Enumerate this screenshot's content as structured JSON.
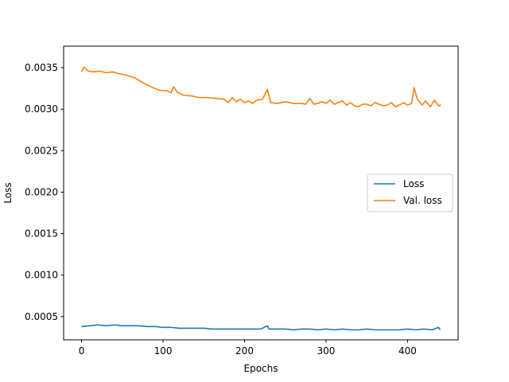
{
  "chart_data": {
    "type": "line",
    "title": "",
    "xlabel": "Epochs",
    "ylabel": "Loss",
    "xlim": [
      -22,
      462
    ],
    "ylim": [
      0.00022,
      0.00376
    ],
    "x_ticks": [
      0,
      100,
      200,
      300,
      400
    ],
    "x_tick_labels": [
      "0",
      "100",
      "200",
      "300",
      "400"
    ],
    "y_ticks": [
      0.0005,
      0.001,
      0.0015,
      0.002,
      0.0025,
      0.003,
      0.0035
    ],
    "y_tick_labels": [
      "0.0005",
      "0.0010",
      "0.0015",
      "0.0020",
      "0.0025",
      "0.0030",
      "0.0035"
    ],
    "grid": false,
    "legend_position": "center-right",
    "series": [
      {
        "name": "Loss",
        "color": "#1f77b4",
        "x": [
          0,
          10,
          20,
          30,
          40,
          50,
          60,
          70,
          80,
          90,
          100,
          110,
          120,
          130,
          140,
          150,
          160,
          170,
          180,
          190,
          200,
          210,
          220,
          228,
          230,
          240,
          250,
          260,
          270,
          280,
          290,
          300,
          310,
          320,
          330,
          340,
          350,
          360,
          370,
          380,
          390,
          400,
          410,
          420,
          430,
          438,
          440
        ],
        "y": [
          0.00038,
          0.00039,
          0.0004,
          0.00039,
          0.0004,
          0.00039,
          0.00039,
          0.00039,
          0.00038,
          0.00038,
          0.00037,
          0.00037,
          0.00036,
          0.00036,
          0.00036,
          0.00036,
          0.00035,
          0.00035,
          0.00035,
          0.00035,
          0.00035,
          0.00035,
          0.00035,
          0.00039,
          0.00035,
          0.00035,
          0.00035,
          0.00034,
          0.00035,
          0.00035,
          0.00034,
          0.00035,
          0.00034,
          0.00035,
          0.00034,
          0.00034,
          0.00035,
          0.00034,
          0.00034,
          0.00034,
          0.00034,
          0.00035,
          0.00034,
          0.00035,
          0.00034,
          0.00037,
          0.00034
        ]
      },
      {
        "name": "Val. loss",
        "color": "#ff7f0e",
        "x": [
          0,
          3,
          8,
          15,
          22,
          30,
          38,
          45,
          55,
          65,
          75,
          85,
          95,
          105,
          110,
          113,
          118,
          125,
          135,
          145,
          155,
          165,
          175,
          180,
          185,
          190,
          195,
          200,
          205,
          210,
          215,
          222,
          228,
          232,
          240,
          250,
          260,
          270,
          275,
          280,
          285,
          290,
          295,
          300,
          305,
          310,
          315,
          320,
          325,
          330,
          335,
          340,
          345,
          350,
          355,
          360,
          365,
          370,
          375,
          380,
          385,
          390,
          395,
          400,
          405,
          408,
          412,
          418,
          422,
          428,
          433,
          438,
          441
        ],
        "y": [
          0.00345,
          0.00351,
          0.00346,
          0.00345,
          0.00346,
          0.00344,
          0.00345,
          0.00343,
          0.00341,
          0.00338,
          0.00332,
          0.00327,
          0.00323,
          0.00322,
          0.0032,
          0.00327,
          0.0032,
          0.00317,
          0.00316,
          0.00314,
          0.00314,
          0.00313,
          0.00312,
          0.00308,
          0.00314,
          0.00309,
          0.00312,
          0.00308,
          0.0031,
          0.00307,
          0.00311,
          0.00312,
          0.00324,
          0.00308,
          0.00307,
          0.00309,
          0.00307,
          0.00307,
          0.00306,
          0.00313,
          0.00306,
          0.00307,
          0.00309,
          0.00307,
          0.00311,
          0.00306,
          0.00308,
          0.0031,
          0.00305,
          0.00308,
          0.00304,
          0.00303,
          0.00306,
          0.00306,
          0.00304,
          0.00308,
          0.00306,
          0.00304,
          0.00305,
          0.00308,
          0.00303,
          0.00305,
          0.00308,
          0.00305,
          0.00307,
          0.00326,
          0.00312,
          0.00305,
          0.0031,
          0.00303,
          0.00311,
          0.00304,
          0.00305
        ]
      }
    ]
  }
}
